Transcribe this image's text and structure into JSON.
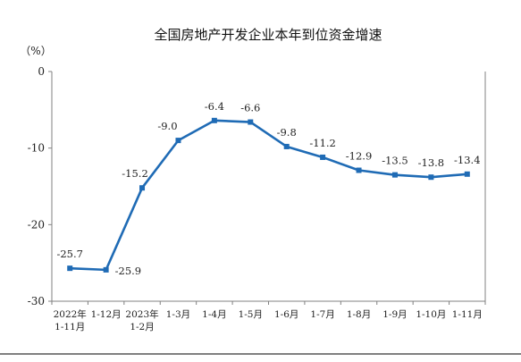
{
  "chart_data": {
    "type": "line",
    "title": "全国房地产开发企业本年到位资金增速",
    "unit_label": "（%）",
    "x": [
      [
        "2022年",
        "1-11月"
      ],
      [
        "1-12月"
      ],
      [
        "2023年",
        "1-2月"
      ],
      [
        "1-3月"
      ],
      [
        "1-4月"
      ],
      [
        "1-5月"
      ],
      [
        "1-6月"
      ],
      [
        "1-7月"
      ],
      [
        "1-8月"
      ],
      [
        "1-9月"
      ],
      [
        "1-10月"
      ],
      [
        "1-11月"
      ]
    ],
    "series": [
      {
        "values": [
          -25.7,
          -25.9,
          -15.2,
          -9.0,
          -6.4,
          -6.6,
          -9.8,
          -11.2,
          -12.9,
          -13.5,
          -13.8,
          -13.4
        ],
        "data_labels": [
          "-25.7",
          "-25.9",
          "-15.2",
          "-9.0",
          "-6.4",
          "-6.6",
          "-9.8",
          "-11.2",
          "-12.9",
          "-13.5",
          "-13.8",
          "-13.4"
        ],
        "color": "#1f6bb5"
      }
    ],
    "ylim": [
      -30,
      0
    ],
    "yticks": [
      0,
      -10,
      -20,
      -30
    ],
    "ytick_labels": [
      "0",
      "-10",
      "-20",
      "-30"
    ],
    "grid": false,
    "legend": "none",
    "axis_color": "#808080"
  }
}
